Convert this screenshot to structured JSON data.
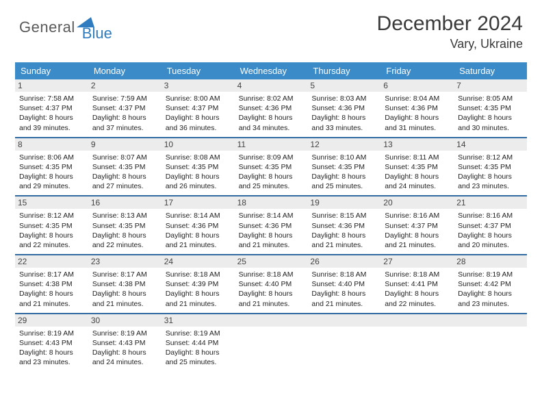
{
  "logo": {
    "general": "General",
    "blue": "Blue"
  },
  "title": {
    "month": "December 2024",
    "location": "Vary, Ukraine"
  },
  "colors": {
    "header_bg": "#3b8bc8",
    "week_divider": "#2f6aa0",
    "daynum_bg": "#ececec",
    "logo_blue": "#2f7bbf",
    "logo_gray": "#5a5a5a"
  },
  "day_headers": [
    "Sunday",
    "Monday",
    "Tuesday",
    "Wednesday",
    "Thursday",
    "Friday",
    "Saturday"
  ],
  "weeks": [
    [
      {
        "n": "1",
        "sr": "Sunrise: 7:58 AM",
        "ss": "Sunset: 4:37 PM",
        "d1": "Daylight: 8 hours",
        "d2": "and 39 minutes."
      },
      {
        "n": "2",
        "sr": "Sunrise: 7:59 AM",
        "ss": "Sunset: 4:37 PM",
        "d1": "Daylight: 8 hours",
        "d2": "and 37 minutes."
      },
      {
        "n": "3",
        "sr": "Sunrise: 8:00 AM",
        "ss": "Sunset: 4:37 PM",
        "d1": "Daylight: 8 hours",
        "d2": "and 36 minutes."
      },
      {
        "n": "4",
        "sr": "Sunrise: 8:02 AM",
        "ss": "Sunset: 4:36 PM",
        "d1": "Daylight: 8 hours",
        "d2": "and 34 minutes."
      },
      {
        "n": "5",
        "sr": "Sunrise: 8:03 AM",
        "ss": "Sunset: 4:36 PM",
        "d1": "Daylight: 8 hours",
        "d2": "and 33 minutes."
      },
      {
        "n": "6",
        "sr": "Sunrise: 8:04 AM",
        "ss": "Sunset: 4:36 PM",
        "d1": "Daylight: 8 hours",
        "d2": "and 31 minutes."
      },
      {
        "n": "7",
        "sr": "Sunrise: 8:05 AM",
        "ss": "Sunset: 4:35 PM",
        "d1": "Daylight: 8 hours",
        "d2": "and 30 minutes."
      }
    ],
    [
      {
        "n": "8",
        "sr": "Sunrise: 8:06 AM",
        "ss": "Sunset: 4:35 PM",
        "d1": "Daylight: 8 hours",
        "d2": "and 29 minutes."
      },
      {
        "n": "9",
        "sr": "Sunrise: 8:07 AM",
        "ss": "Sunset: 4:35 PM",
        "d1": "Daylight: 8 hours",
        "d2": "and 27 minutes."
      },
      {
        "n": "10",
        "sr": "Sunrise: 8:08 AM",
        "ss": "Sunset: 4:35 PM",
        "d1": "Daylight: 8 hours",
        "d2": "and 26 minutes."
      },
      {
        "n": "11",
        "sr": "Sunrise: 8:09 AM",
        "ss": "Sunset: 4:35 PM",
        "d1": "Daylight: 8 hours",
        "d2": "and 25 minutes."
      },
      {
        "n": "12",
        "sr": "Sunrise: 8:10 AM",
        "ss": "Sunset: 4:35 PM",
        "d1": "Daylight: 8 hours",
        "d2": "and 25 minutes."
      },
      {
        "n": "13",
        "sr": "Sunrise: 8:11 AM",
        "ss": "Sunset: 4:35 PM",
        "d1": "Daylight: 8 hours",
        "d2": "and 24 minutes."
      },
      {
        "n": "14",
        "sr": "Sunrise: 8:12 AM",
        "ss": "Sunset: 4:35 PM",
        "d1": "Daylight: 8 hours",
        "d2": "and 23 minutes."
      }
    ],
    [
      {
        "n": "15",
        "sr": "Sunrise: 8:12 AM",
        "ss": "Sunset: 4:35 PM",
        "d1": "Daylight: 8 hours",
        "d2": "and 22 minutes."
      },
      {
        "n": "16",
        "sr": "Sunrise: 8:13 AM",
        "ss": "Sunset: 4:35 PM",
        "d1": "Daylight: 8 hours",
        "d2": "and 22 minutes."
      },
      {
        "n": "17",
        "sr": "Sunrise: 8:14 AM",
        "ss": "Sunset: 4:36 PM",
        "d1": "Daylight: 8 hours",
        "d2": "and 21 minutes."
      },
      {
        "n": "18",
        "sr": "Sunrise: 8:14 AM",
        "ss": "Sunset: 4:36 PM",
        "d1": "Daylight: 8 hours",
        "d2": "and 21 minutes."
      },
      {
        "n": "19",
        "sr": "Sunrise: 8:15 AM",
        "ss": "Sunset: 4:36 PM",
        "d1": "Daylight: 8 hours",
        "d2": "and 21 minutes."
      },
      {
        "n": "20",
        "sr": "Sunrise: 8:16 AM",
        "ss": "Sunset: 4:37 PM",
        "d1": "Daylight: 8 hours",
        "d2": "and 21 minutes."
      },
      {
        "n": "21",
        "sr": "Sunrise: 8:16 AM",
        "ss": "Sunset: 4:37 PM",
        "d1": "Daylight: 8 hours",
        "d2": "and 20 minutes."
      }
    ],
    [
      {
        "n": "22",
        "sr": "Sunrise: 8:17 AM",
        "ss": "Sunset: 4:38 PM",
        "d1": "Daylight: 8 hours",
        "d2": "and 21 minutes."
      },
      {
        "n": "23",
        "sr": "Sunrise: 8:17 AM",
        "ss": "Sunset: 4:38 PM",
        "d1": "Daylight: 8 hours",
        "d2": "and 21 minutes."
      },
      {
        "n": "24",
        "sr": "Sunrise: 8:18 AM",
        "ss": "Sunset: 4:39 PM",
        "d1": "Daylight: 8 hours",
        "d2": "and 21 minutes."
      },
      {
        "n": "25",
        "sr": "Sunrise: 8:18 AM",
        "ss": "Sunset: 4:40 PM",
        "d1": "Daylight: 8 hours",
        "d2": "and 21 minutes."
      },
      {
        "n": "26",
        "sr": "Sunrise: 8:18 AM",
        "ss": "Sunset: 4:40 PM",
        "d1": "Daylight: 8 hours",
        "d2": "and 21 minutes."
      },
      {
        "n": "27",
        "sr": "Sunrise: 8:18 AM",
        "ss": "Sunset: 4:41 PM",
        "d1": "Daylight: 8 hours",
        "d2": "and 22 minutes."
      },
      {
        "n": "28",
        "sr": "Sunrise: 8:19 AM",
        "ss": "Sunset: 4:42 PM",
        "d1": "Daylight: 8 hours",
        "d2": "and 23 minutes."
      }
    ],
    [
      {
        "n": "29",
        "sr": "Sunrise: 8:19 AM",
        "ss": "Sunset: 4:43 PM",
        "d1": "Daylight: 8 hours",
        "d2": "and 23 minutes."
      },
      {
        "n": "30",
        "sr": "Sunrise: 8:19 AM",
        "ss": "Sunset: 4:43 PM",
        "d1": "Daylight: 8 hours",
        "d2": "and 24 minutes."
      },
      {
        "n": "31",
        "sr": "Sunrise: 8:19 AM",
        "ss": "Sunset: 4:44 PM",
        "d1": "Daylight: 8 hours",
        "d2": "and 25 minutes."
      },
      {
        "empty": true
      },
      {
        "empty": true
      },
      {
        "empty": true
      },
      {
        "empty": true
      }
    ]
  ]
}
